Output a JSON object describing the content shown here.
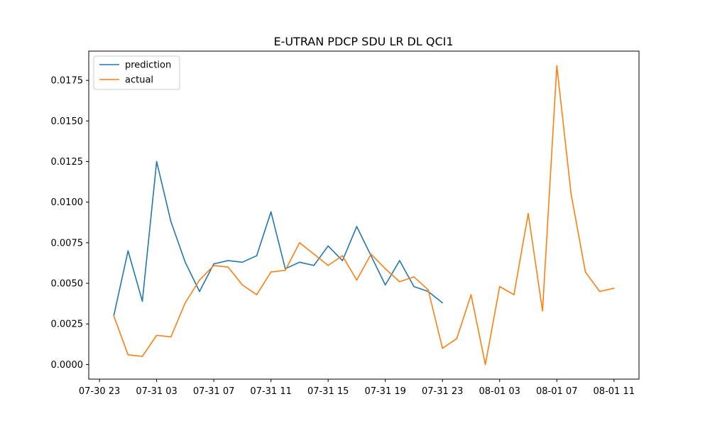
{
  "chart_data": {
    "type": "line",
    "title": "E-UTRAN PDCP SDU LR DL QCI1",
    "xlabel": "",
    "ylabel": "",
    "x_ticks": [
      "07-30 23",
      "07-31 03",
      "07-31 07",
      "07-31 11",
      "07-31 15",
      "07-31 19",
      "07-31 23",
      "08-01 03",
      "08-01 07",
      "08-01 11"
    ],
    "y_ticks": [
      "0.0000",
      "0.0025",
      "0.0050",
      "0.0075",
      "0.0100",
      "0.0125",
      "0.0150",
      "0.0175"
    ],
    "ylim": [
      -0.0009,
      0.0193
    ],
    "grid": false,
    "legend_position": "top-left",
    "series": [
      {
        "name": "prediction",
        "color": "#1f77b4",
        "x": [
          "07-31 00",
          "07-31 01",
          "07-31 02",
          "07-31 03",
          "07-31 04",
          "07-31 05",
          "07-31 06",
          "07-31 07",
          "07-31 08",
          "07-31 09",
          "07-31 10",
          "07-31 11",
          "07-31 12",
          "07-31 13",
          "07-31 14",
          "07-31 15",
          "07-31 16",
          "07-31 17",
          "07-31 18",
          "07-31 19",
          "07-31 20",
          "07-31 21",
          "07-31 22",
          "07-31 23"
        ],
        "values": [
          0.003,
          0.007,
          0.0039,
          0.0125,
          0.0088,
          0.0063,
          0.0045,
          0.0062,
          0.0064,
          0.0063,
          0.0067,
          0.0094,
          0.0059,
          0.0063,
          0.0061,
          0.0073,
          0.0064,
          0.0085,
          0.0067,
          0.0049,
          0.0064,
          0.0048,
          0.0045,
          0.0038
        ]
      },
      {
        "name": "actual",
        "color": "#ff7f0e",
        "x": [
          "07-31 00",
          "07-31 01",
          "07-31 02",
          "07-31 03",
          "07-31 04",
          "07-31 05",
          "07-31 06",
          "07-31 07",
          "07-31 08",
          "07-31 09",
          "07-31 10",
          "07-31 11",
          "07-31 12",
          "07-31 13",
          "07-31 14",
          "07-31 15",
          "07-31 16",
          "07-31 17",
          "07-31 18",
          "07-31 19",
          "07-31 20",
          "07-31 21",
          "07-31 22",
          "07-31 23",
          "08-01 00",
          "08-01 01",
          "08-01 02",
          "08-01 03",
          "08-01 04",
          "08-01 05",
          "08-01 06",
          "08-01 07",
          "08-01 08",
          "08-01 09",
          "08-01 10",
          "08-01 11"
        ],
        "values": [
          0.003,
          0.0006,
          0.0005,
          0.0018,
          0.0017,
          0.0038,
          0.0052,
          0.0061,
          0.006,
          0.0049,
          0.0043,
          0.0057,
          0.0058,
          0.0075,
          0.0068,
          0.0061,
          0.0067,
          0.0052,
          0.0068,
          0.0059,
          0.0051,
          0.0054,
          0.0046,
          0.001,
          0.0016,
          0.0043,
          0.0,
          0.0048,
          0.0043,
          0.0093,
          0.0033,
          0.0184,
          0.0105,
          0.0057,
          0.0045,
          0.0047
        ]
      }
    ]
  }
}
